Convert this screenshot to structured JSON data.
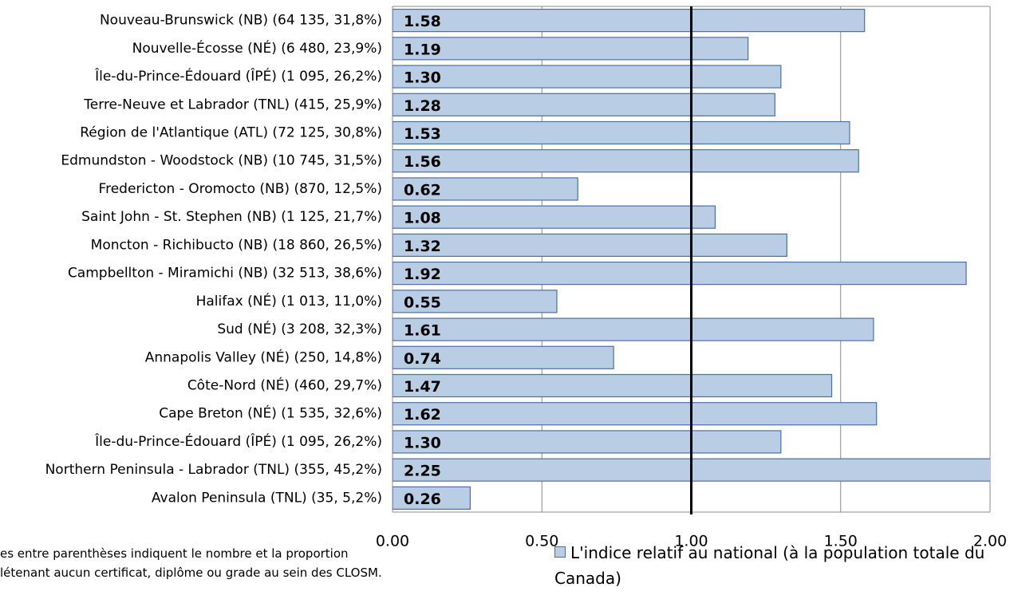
{
  "chart_data": {
    "type": "bar",
    "orientation": "horizontal",
    "categories": [
      "Nouveau-Brunswick (NB) (64 135, 31,8%)",
      "Nouvelle-Écosse (NÉ) (6 480, 23,9%)",
      "Île-du-Prince-Édouard (ÎPÉ) (1 095, 26,2%)",
      "Terre-Neuve et Labrador (TNL) (415, 25,9%)",
      "Région de l'Atlantique (ATL) (72 125, 30,8%)",
      "Edmundston - Woodstock (NB) (10 745, 31,5%)",
      "Fredericton - Oromocto (NB) (870, 12,5%)",
      "Saint John - St. Stephen (NB) (1 125, 21,7%)",
      "Moncton - Richibucto (NB) (18 860, 26,5%)",
      "Campbellton - Miramichi (NB) (32 513, 38,6%)",
      "Halifax (NÉ) (1 013, 11,0%)",
      "Sud (NÉ) (3 208, 32,3%)",
      "Annapolis Valley (NÉ) (250, 14,8%)",
      "Côte-Nord (NÉ) (460, 29,7%)",
      "Cape Breton (NÉ) (1 535, 32,6%)",
      "Île-du-Prince-Édouard (ÎPÉ) (1 095, 26,2%)",
      "Northern Peninsula - Labrador (TNL) (355, 45,2%)",
      "Avalon Peninsula (TNL) (35, 5,2%)"
    ],
    "series": [
      {
        "name": "L'indice relatif au national (à la population totale du Canada)",
        "color": "#b9cde5",
        "values": [
          1.58,
          1.19,
          1.3,
          1.28,
          1.53,
          1.56,
          0.62,
          1.08,
          1.32,
          1.92,
          0.55,
          1.61,
          0.74,
          1.47,
          1.62,
          1.3,
          2.25,
          0.26
        ],
        "value_labels": [
          "1.58",
          "1.19",
          "1.30",
          "1.28",
          "1.53",
          "1.56",
          "0.62",
          "1.08",
          "1.32",
          "1.92",
          "0.55",
          "1.61",
          "0.74",
          "1.47",
          "1.62",
          "1.30",
          "2.25",
          "0.26"
        ]
      }
    ],
    "xlim": [
      0,
      2
    ],
    "xticks": [
      {
        "value": 0,
        "label": "0.00"
      },
      {
        "value": 0.5,
        "label": "0.50"
      },
      {
        "value": 1,
        "label": "1.00"
      },
      {
        "value": 1.5,
        "label": "1.50"
      },
      {
        "value": 2,
        "label": "2.00"
      }
    ],
    "reference_line": 1,
    "grid": true,
    "note": [
      "es entre parenthèses indiquent le nombre et la proportion",
      "létenant aucun certificat, diplôme ou grade au sein des CLOSM."
    ]
  }
}
